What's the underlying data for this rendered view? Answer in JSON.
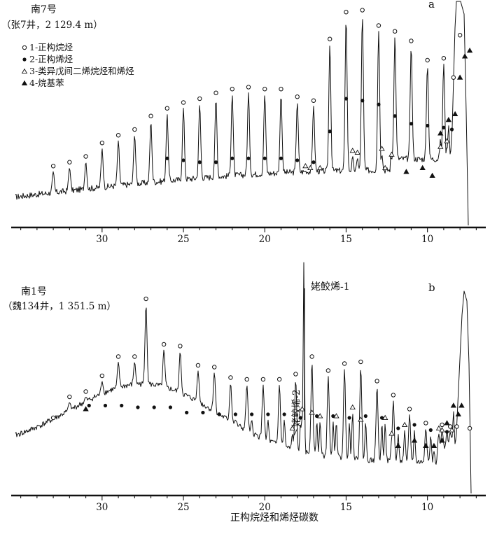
{
  "legend": [
    {
      "symbol": "open-circle",
      "label": "1-正构烷烃"
    },
    {
      "symbol": "filled-circle",
      "label": "2-正构烯烃"
    },
    {
      "symbol": "open-triangle",
      "label": "3-类异戊间二烯烷烃和烯烃"
    },
    {
      "symbol": "filled-triangle",
      "label": "4-烷基苯"
    }
  ],
  "xlabel": "正构烷烃和烯烃碳数",
  "chart_data": [
    {
      "type": "line",
      "panel": "a",
      "title": "南7号",
      "subtitle": "（张7井，2 129.4 m）",
      "xlabel": "",
      "ylabel": "",
      "x_axis_reversed": true,
      "xlim": [
        35.5,
        6.5
      ],
      "xticks": [
        30,
        25,
        20,
        15,
        10
      ],
      "ylim": [
        0,
        100
      ],
      "grid": false,
      "legend_position": "top-left",
      "annotations": [],
      "series": [
        {
          "name": "1-正构烷烃",
          "x": [
            33,
            32,
            31,
            30,
            29,
            28,
            27,
            26,
            25,
            24,
            23,
            22,
            21,
            20,
            19,
            18,
            17,
            16,
            15,
            14,
            13,
            12,
            11,
            10,
            9,
            8.4,
            8
          ],
          "y": [
            17,
            19,
            22,
            29,
            33,
            36,
            43,
            47,
            50,
            52,
            55,
            57,
            58,
            57,
            57,
            53,
            51,
            83,
            97,
            98,
            90,
            87,
            82,
            72,
            73,
            63,
            85
          ]
        },
        {
          "name": "2-正构烯烃",
          "x": [
            26,
            25,
            24,
            23,
            22,
            21,
            20,
            19,
            18,
            17,
            16,
            15,
            14,
            13,
            12,
            11,
            10,
            9,
            8.5
          ],
          "y": [
            21,
            20,
            19,
            19,
            21,
            21,
            21,
            21,
            20,
            19,
            35,
            52,
            51,
            49,
            43,
            39,
            38,
            37,
            36
          ]
        },
        {
          "name": "3-类异戊间二烯烷烃和烯烃",
          "x": [
            17.5,
            17.2,
            16.6,
            14.6,
            14.3,
            12.8,
            12.6,
            12.2,
            9.2,
            8.8
          ],
          "y": [
            17,
            16,
            16,
            25,
            24,
            26,
            16,
            23,
            27,
            30
          ]
        },
        {
          "name": "4-烷基苯",
          "x": [
            11.3,
            10.3,
            9.7,
            9.2,
            8.7,
            8.3,
            8.0,
            7.7,
            7.4
          ],
          "y": [
            14,
            16,
            12,
            34,
            41,
            44,
            63,
            74,
            77
          ]
        }
      ]
    },
    {
      "type": "line",
      "panel": "b",
      "title": "南1号",
      "subtitle": "（魏134井，1 351.5 m）",
      "xlabel": "正构烷烃和烯烃碳数",
      "ylabel": "",
      "x_axis_reversed": true,
      "xlim": [
        35.5,
        6.5
      ],
      "xticks": [
        30,
        25,
        20,
        15,
        10
      ],
      "ylim": [
        0,
        100
      ],
      "grid": false,
      "annotations": [
        "姥鲛烯-1",
        "姥鲛烯-2"
      ],
      "series": [
        {
          "name": "1-正构烷烃",
          "x": [
            33,
            32,
            31,
            30,
            29,
            28,
            27.3,
            26.2,
            25.2,
            24.1,
            23.1,
            22.1,
            21.1,
            20.1,
            19.1,
            18.1,
            17.1,
            16.1,
            15.1,
            14.1,
            13.1,
            12.1,
            11.1,
            10.1,
            9.1,
            8.6,
            8.2,
            7.4
          ],
          "y": [
            26,
            38,
            41,
            50,
            61,
            61,
            94,
            68,
            67,
            56,
            55,
            49,
            48,
            48,
            48,
            51,
            61,
            53,
            57,
            58,
            47,
            39,
            31,
            23,
            22,
            21,
            21,
            20
          ]
        },
        {
          "name": "2-正构烯烃",
          "x": [
            30.8,
            29.8,
            28.8,
            27.8,
            26.8,
            25.8,
            24.8,
            23.8,
            22.8,
            21.8,
            20.8,
            19.8,
            18.8,
            17.8,
            16.8,
            15.8,
            14.8,
            13.8,
            12.8,
            11.8,
            10.8,
            9.8,
            8.8
          ],
          "y": [
            33,
            33,
            33,
            32,
            32,
            32,
            29,
            29,
            28,
            28,
            28,
            28,
            28,
            26,
            27,
            27,
            26,
            27,
            26,
            20,
            22,
            19,
            18
          ]
        },
        {
          "name": "3-类异戊间二烯烷烃和烯烃",
          "x": [
            18.3,
            17.7,
            17.1,
            16.6,
            15.6,
            14.6,
            14.1,
            12.6,
            12.2,
            11.4,
            9.3,
            9.1,
            8.5
          ],
          "y": [
            20,
            31,
            29,
            27,
            27,
            32,
            25,
            26,
            17,
            22,
            20,
            19,
            19
          ]
        },
        {
          "name": "4-烷基苯",
          "x": [
            31.0,
            11.8,
            10.8,
            10.1,
            9.6,
            9.1,
            8.8,
            8.4,
            8.1,
            7.9
          ],
          "y": [
            31,
            10,
            13,
            10,
            10,
            13,
            23,
            33,
            28,
            33
          ]
        }
      ]
    }
  ]
}
